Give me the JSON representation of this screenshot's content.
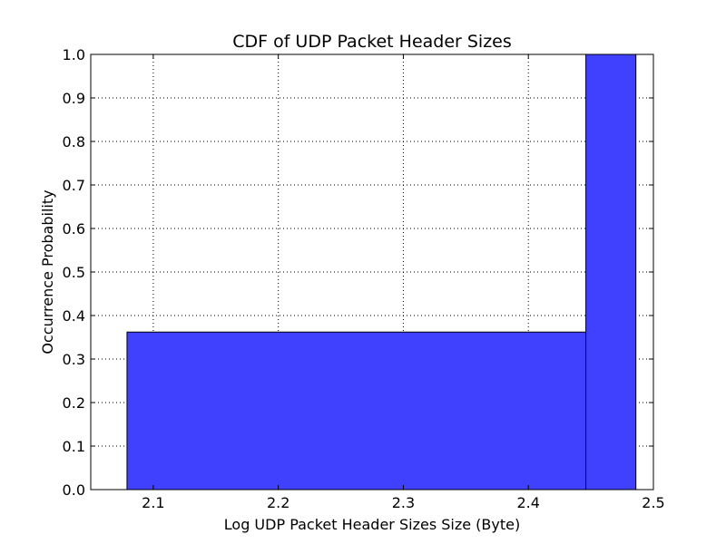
{
  "chart_data": {
    "type": "area",
    "title": "CDF of UDP Packet Header Sizes",
    "xlabel": "Log UDP Packet Header Sizes Size (Byte)",
    "ylabel": "Occurrence Probability",
    "xlim": [
      2.05,
      2.5
    ],
    "ylim": [
      0.0,
      1.0
    ],
    "xticks": [
      2.1,
      2.2,
      2.3,
      2.4,
      2.5
    ],
    "xtick_labels": [
      "2.1",
      "2.2",
      "2.3",
      "2.4",
      "2.5"
    ],
    "yticks": [
      0.0,
      0.1,
      0.2,
      0.3,
      0.4,
      0.5,
      0.6,
      0.7,
      0.8,
      0.9,
      1.0
    ],
    "ytick_labels": [
      "0.0",
      "0.1",
      "0.2",
      "0.3",
      "0.4",
      "0.5",
      "0.6",
      "0.7",
      "0.8",
      "0.9",
      "1.0"
    ],
    "grid": true,
    "bins": [
      {
        "x_start": 2.079,
        "x_end": 2.446,
        "y": 0.362
      },
      {
        "x_start": 2.446,
        "x_end": 2.486,
        "y": 1.0
      }
    ],
    "fill_color": "#4040ff",
    "edge_color": "#000000"
  }
}
